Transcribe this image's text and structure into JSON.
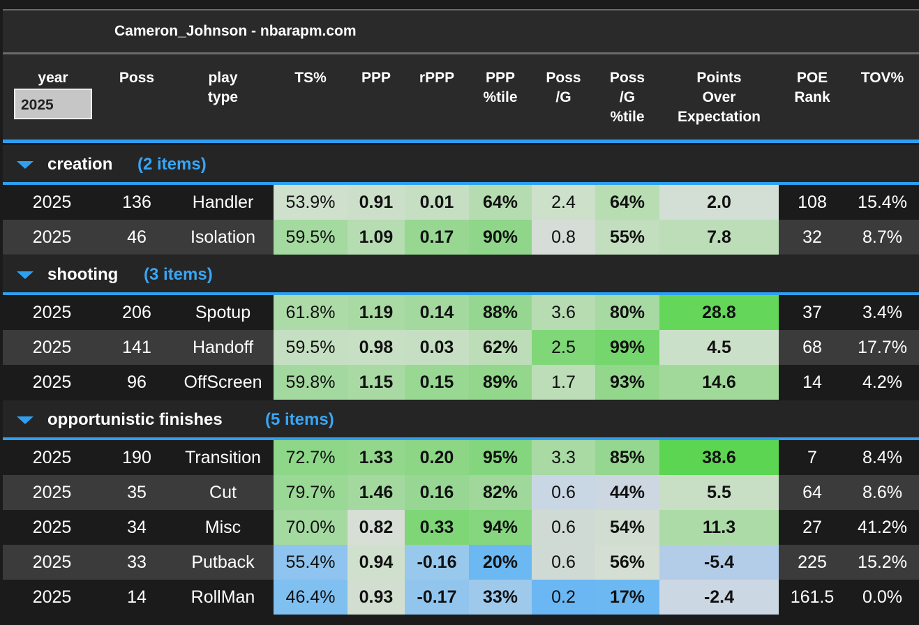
{
  "title": "Cameron_Johnson - nbarapm.com",
  "year_filter": {
    "label": "year",
    "value": "2025"
  },
  "columns": [
    {
      "key": "poss",
      "label": "Poss"
    },
    {
      "key": "play_type",
      "label": "play\ntype"
    },
    {
      "key": "ts",
      "label": "TS%"
    },
    {
      "key": "ppp",
      "label": "PPP"
    },
    {
      "key": "rppp",
      "label": "rPPP"
    },
    {
      "key": "ppp_pct",
      "label": "PPP\n%tile"
    },
    {
      "key": "poss_g",
      "label": "Poss\n/G"
    },
    {
      "key": "poss_g_pct",
      "label": "Poss\n/G\n%tile"
    },
    {
      "key": "poe",
      "label": "Points\nOver\nExpectation"
    },
    {
      "key": "poe_rank",
      "label": "POE\nRank"
    },
    {
      "key": "tov",
      "label": "TOV%"
    }
  ],
  "colors": {
    "accent_blue": "#2ea0f2",
    "group_count_blue": "#38a6f5",
    "header_bg": "#2a2a2b",
    "row_dark": "#1b1b1c",
    "row_alt": "#3b3b3c"
  },
  "groups": [
    {
      "name": "creation",
      "count": "(2 items)",
      "rows": [
        {
          "year": "2025",
          "poss": "136",
          "play_type": "Handler",
          "ts": "53.9%",
          "ppp": "0.91",
          "rppp": "0.01",
          "ppp_pct": "64%",
          "poss_g": "2.4",
          "poss_g_pct": "64%",
          "poe": "2.0",
          "poe_rank": "108",
          "tov": "15.4%",
          "colors": [
            "#cfe0cd",
            "#cce0c9",
            "#c6dfc3",
            "#b5dcb1",
            "#cde0ca",
            "#b8ddb3",
            "#d3ded4"
          ]
        },
        {
          "year": "2025",
          "poss": "46",
          "play_type": "Isolation",
          "ts": "59.5%",
          "ppp": "1.09",
          "rppp": "0.17",
          "ppp_pct": "90%",
          "poss_g": "0.8",
          "poss_g_pct": "55%",
          "poe": "7.8",
          "poe_rank": "32",
          "tov": "8.7%",
          "colors": [
            "#a4d9a0",
            "#b6dcb1",
            "#97d792",
            "#8fd68a",
            "#d5ddd6",
            "#c2deBE",
            "#bcddb8"
          ]
        }
      ]
    },
    {
      "name": "shooting",
      "count": "(3 items)",
      "rows": [
        {
          "year": "2025",
          "poss": "206",
          "play_type": "Spotup",
          "ts": "61.8%",
          "ppp": "1.19",
          "rppp": "0.14",
          "ppp_pct": "88%",
          "poss_g": "3.6",
          "poss_g_pct": "80%",
          "poe": "28.8",
          "poe_rank": "37",
          "tov": "3.4%",
          "colors": [
            "#acdba7",
            "#a9daa4",
            "#a3d99e",
            "#95d790",
            "#b7dcb2",
            "#a7d9a2",
            "#64d65a"
          ]
        },
        {
          "year": "2025",
          "poss": "141",
          "play_type": "Handoff",
          "ts": "59.5%",
          "ppp": "0.98",
          "rppp": "0.03",
          "ppp_pct": "62%",
          "poss_g": "2.5",
          "poss_g_pct": "99%",
          "poe": "4.5",
          "poe_rank": "68",
          "tov": "17.7%",
          "colors": [
            "#c5dfc2",
            "#c7dfc3",
            "#c6dfc3",
            "#bcddb7",
            "#7fd778",
            "#74d66c",
            "#cbe0c8"
          ]
        },
        {
          "year": "2025",
          "poss": "96",
          "play_type": "OffScreen",
          "ts": "59.8%",
          "ppp": "1.15",
          "rppp": "0.15",
          "ppp_pct": "89%",
          "poss_g": "1.7",
          "poss_g_pct": "93%",
          "poe": "14.6",
          "poe_rank": "14",
          "tov": "4.2%",
          "colors": [
            "#a3d99e",
            "#a9daa4",
            "#99d893",
            "#92d78c",
            "#bcddb7",
            "#93d78d",
            "#a1d99b"
          ]
        }
      ]
    },
    {
      "name": "opportunistic finishes",
      "count": "(5 items)",
      "rows": [
        {
          "year": "2025",
          "poss": "190",
          "play_type": "Transition",
          "ts": "72.7%",
          "ppp": "1.33",
          "rppp": "0.20",
          "ppp_pct": "95%",
          "poss_g": "3.3",
          "poss_g_pct": "85%",
          "poe": "38.6",
          "poe_rank": "7",
          "tov": "8.4%",
          "colors": [
            "#8ed789",
            "#93d78d",
            "#8cd686",
            "#84d67e",
            "#a9daa4",
            "#95d790",
            "#5cd552"
          ]
        },
        {
          "year": "2025",
          "poss": "35",
          "play_type": "Cut",
          "ts": "79.7%",
          "ppp": "1.46",
          "rppp": "0.16",
          "ppp_pct": "82%",
          "poss_g": "0.6",
          "poss_g_pct": "44%",
          "poe": "5.5",
          "poe_rank": "64",
          "tov": "8.6%",
          "colors": [
            "#9ad895",
            "#a3d99e",
            "#98d793",
            "#9fd89a",
            "#c9d6e3",
            "#cdd7e2",
            "#c8dfc5"
          ]
        },
        {
          "year": "2025",
          "poss": "34",
          "play_type": "Misc",
          "ts": "70.0%",
          "ppp": "0.82",
          "rppp": "0.33",
          "ppp_pct": "94%",
          "poss_g": "0.6",
          "poss_g_pct": "54%",
          "poe": "11.3",
          "poe_rank": "27",
          "tov": "41.2%",
          "colors": [
            "#a4d9a0",
            "#d6ded6",
            "#7ed677",
            "#86d680",
            "#d0dad4",
            "#d1ddd0",
            "#acdba7"
          ]
        },
        {
          "year": "2025",
          "poss": "33",
          "play_type": "Putback",
          "ts": "55.4%",
          "ppp": "0.94",
          "rppp": "-0.16",
          "ppp_pct": "20%",
          "poss_g": "0.6",
          "poss_g_pct": "56%",
          "poe": "-5.4",
          "poe_rank": "225",
          "tov": "15.2%",
          "colors": [
            "#8ec4ef",
            "#cfe0cc",
            "#98c8ec",
            "#6bb8f2",
            "#d0dad4",
            "#d4ded3",
            "#b3cde8"
          ]
        },
        {
          "year": "2025",
          "poss": "14",
          "play_type": "RollMan",
          "ts": "46.4%",
          "ppp": "0.93",
          "rppp": "-0.17",
          "ppp_pct": "33%",
          "poss_g": "0.2",
          "poss_g_pct": "17%",
          "poe": "-2.4",
          "poe_rank": "161.5",
          "tov": "0.0%",
          "colors": [
            "#80c0f0",
            "#d2dfd0",
            "#91c5ee",
            "#9ec9eb",
            "#6ab7f3",
            "#6cb8f2",
            "#cbd7e3"
          ]
        }
      ]
    }
  ]
}
